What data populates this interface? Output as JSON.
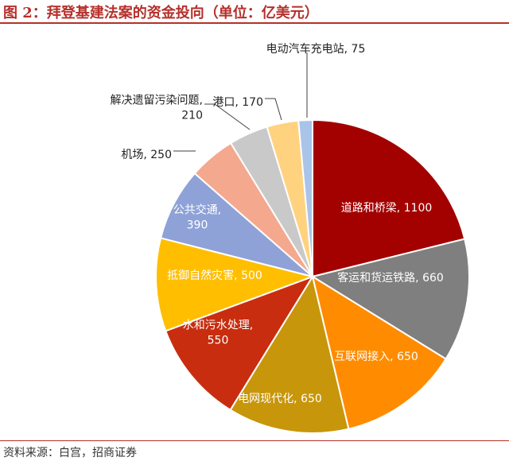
{
  "title": "图 2：拜登基建法案的资金投向（单位：亿美元）",
  "source": "资料来源：白宫，招商证券",
  "chart_data": {
    "type": "pie",
    "title": "图 2：拜登基建法案的资金投向（单位：亿美元）",
    "unit": "亿美元",
    "start": "12 o'clock",
    "direction": "clockwise",
    "slices": [
      {
        "name": "道路和桥梁",
        "value": 1100,
        "label": "道路和桥梁, 1100",
        "color": "#a30000",
        "label_position": "inside",
        "text_color": "#ffffff"
      },
      {
        "name": "客运和货运铁路",
        "value": 660,
        "label": "客运和货运铁路, 660",
        "color": "#7f7f7f",
        "label_position": "inside",
        "text_color": "#ffffff"
      },
      {
        "name": "互联网接入",
        "value": 650,
        "label": "互联网接入, 650",
        "color": "#ff8c00",
        "label_position": "inside",
        "text_color": "#ffffff"
      },
      {
        "name": "电网现代化",
        "value": 650,
        "label": "电网现代化, 650",
        "color": "#c8960a",
        "label_position": "inside",
        "text_color": "#ffffff"
      },
      {
        "name": "水和污水处理",
        "value": 550,
        "label": [
          "水和污水处理,",
          "550"
        ],
        "color": "#c82d0f",
        "label_position": "inside",
        "text_color": "#ffffff"
      },
      {
        "name": "抵御自然灾害",
        "value": 500,
        "label": "抵御自然灾害, 500",
        "color": "#ffbf00",
        "label_position": "inside",
        "text_color": "#ffffff"
      },
      {
        "name": "公共交通",
        "value": 390,
        "label": [
          "公共交通,",
          "390"
        ],
        "color": "#8ea2d8",
        "label_position": "inside",
        "text_color": "#ffffff"
      },
      {
        "name": "机场",
        "value": 250,
        "label": "机场, 250",
        "color": "#f4a88e",
        "label_position": "outside",
        "text_color": "#222222"
      },
      {
        "name": "解决遗留污染问题",
        "value": 210,
        "label": [
          "解决遗留污染问题,",
          "210"
        ],
        "color": "#c9c9c9",
        "label_position": "outside",
        "text_color": "#222222"
      },
      {
        "name": "港口",
        "value": 170,
        "label": "港口, 170",
        "color": "#ffd27f",
        "label_position": "outside",
        "text_color": "#222222"
      },
      {
        "name": "电动汽车充电站",
        "value": 75,
        "label": "电动汽车充电站, 75",
        "color": "#a9c4e8",
        "label_position": "outside",
        "text_color": "#222222"
      }
    ]
  }
}
